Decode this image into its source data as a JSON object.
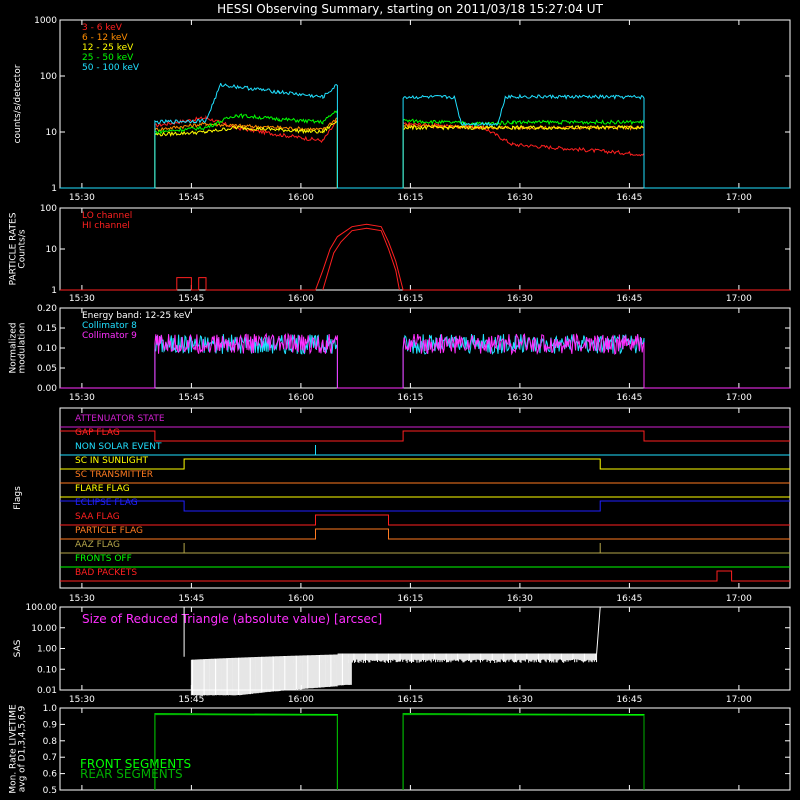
{
  "title": "HESSI Observing Summary, starting on 2011/03/18 15:27:04 UT",
  "time_ticks": [
    "15:30",
    "15:45",
    "16:00",
    "16:15",
    "16:30",
    "16:45",
    "17:00"
  ],
  "colors": {
    "white": "#ffffff",
    "red": "#ff2020",
    "orange": "#ff8c00",
    "yellow": "#ffff00",
    "green": "#00ff00",
    "cyan": "#20e0ff",
    "magenta": "#ff30ff",
    "blue": "#2020ff",
    "olive": "#b5a64a",
    "flag_magenta": "#d020d0",
    "flag_orange": "#ff7a20",
    "flag_darkgreen": "#00b000"
  },
  "chart_data": [
    {
      "id": "xray",
      "type": "line",
      "ylabel": "counts/s/detector",
      "yscale": "log",
      "ylim": [
        1,
        1000
      ],
      "yticks": [
        "1",
        "10",
        "100",
        "1000"
      ],
      "x_unit": "minutes since 15:27:04 UT",
      "xlim": [
        0,
        100
      ],
      "legend": [
        "3 - 6 keV",
        "6 - 12 keV",
        "12 - 25 keV",
        "25 - 50 keV",
        "50 - 100 keV"
      ],
      "legend_colors": [
        "red",
        "orange",
        "yellow",
        "green",
        "cyan"
      ],
      "intervals": [
        [
          13,
          38
        ],
        [
          47,
          80
        ]
      ],
      "series": [
        {
          "name": "3 - 6 keV",
          "color": "red",
          "points": [
            [
              13,
              13
            ],
            [
              20,
              18
            ],
            [
              24,
              12
            ],
            [
              30,
              9
            ],
            [
              36,
              7
            ],
            [
              38,
              16
            ],
            [
              47,
              14
            ],
            [
              58,
              12
            ],
            [
              62,
              6
            ],
            [
              80,
              4
            ]
          ]
        },
        {
          "name": "6 - 12 keV",
          "color": "orange",
          "points": [
            [
              13,
              11
            ],
            [
              20,
              14
            ],
            [
              24,
              13
            ],
            [
              30,
              12
            ],
            [
              36,
              11
            ],
            [
              38,
              18
            ],
            [
              47,
              13
            ],
            [
              58,
              12
            ],
            [
              62,
              12
            ],
            [
              80,
              12
            ]
          ]
        },
        {
          "name": "12 - 25 keV",
          "color": "yellow",
          "points": [
            [
              13,
              9
            ],
            [
              20,
              10
            ],
            [
              24,
              12
            ],
            [
              30,
              11
            ],
            [
              36,
              10
            ],
            [
              38,
              16
            ],
            [
              47,
              12
            ],
            [
              58,
              12
            ],
            [
              62,
              12
            ],
            [
              80,
              12
            ]
          ]
        },
        {
          "name": "25 - 50 keV",
          "color": "green",
          "points": [
            [
              13,
              10
            ],
            [
              20,
              12
            ],
            [
              24,
              20
            ],
            [
              30,
              17
            ],
            [
              36,
              15
            ],
            [
              38,
              25
            ],
            [
              47,
              16
            ],
            [
              58,
              14
            ],
            [
              62,
              15
            ],
            [
              80,
              15
            ]
          ]
        },
        {
          "name": "50 - 100 keV",
          "color": "cyan",
          "points": [
            [
              13,
              15
            ],
            [
              20,
              16
            ],
            [
              22,
              70
            ],
            [
              30,
              52
            ],
            [
              36,
              42
            ],
            [
              38,
              70
            ],
            [
              47,
              42
            ],
            [
              54,
              42
            ],
            [
              55,
              14
            ],
            [
              60,
              14
            ],
            [
              61,
              43
            ],
            [
              80,
              42
            ]
          ]
        }
      ]
    },
    {
      "id": "particle",
      "type": "line",
      "ylabel": "PARTICLE RATES Counts/s",
      "yscale": "log",
      "ylim": [
        1,
        100
      ],
      "yticks": [
        "1",
        "10",
        "100"
      ],
      "legend": [
        "LO channel",
        "HI channel"
      ],
      "legend_colors": [
        "red",
        "red"
      ],
      "series": [
        {
          "name": "LO channel",
          "color": "red",
          "points": [
            [
              0,
              1
            ],
            [
              16,
              1
            ],
            [
              16,
              2
            ],
            [
              18,
              2
            ],
            [
              18,
              1
            ],
            [
              19,
              1
            ],
            [
              19,
              2
            ],
            [
              20,
              2
            ],
            [
              20,
              1
            ],
            [
              35,
              1
            ],
            [
              36,
              3
            ],
            [
              37,
              10
            ],
            [
              38,
              20
            ],
            [
              40,
              35
            ],
            [
              42,
              40
            ],
            [
              44,
              35
            ],
            [
              45,
              15
            ],
            [
              46,
              5
            ],
            [
              47,
              1
            ],
            [
              100,
              1
            ]
          ]
        },
        {
          "name": "HI channel",
          "color": "red",
          "points": [
            [
              36,
              1
            ],
            [
              36.5,
              2
            ],
            [
              37.5,
              8
            ],
            [
              38.5,
              15
            ],
            [
              40,
              28
            ],
            [
              42,
              32
            ],
            [
              44,
              28
            ],
            [
              45,
              10
            ],
            [
              46,
              3
            ],
            [
              46.5,
              1
            ]
          ]
        }
      ]
    },
    {
      "id": "modulation",
      "type": "line",
      "ylabel": "Normalized modulation",
      "ylim": [
        0,
        0.2
      ],
      "yticks": [
        "0.00",
        "0.05",
        "0.10",
        "0.15",
        "0.20"
      ],
      "legend": [
        "Energy band:  12-25 keV",
        "Collimator 8",
        "Collimator 9"
      ],
      "legend_colors": [
        "white",
        "cyan",
        "magenta"
      ],
      "intervals": [
        [
          13,
          38
        ],
        [
          47,
          80
        ]
      ],
      "series": [
        {
          "name": "Collimator 8",
          "color": "cyan",
          "mean": 0.11
        },
        {
          "name": "Collimator 9",
          "color": "magenta",
          "mean": 0.11
        }
      ]
    },
    {
      "id": "flags",
      "type": "table",
      "ylabel": "Flags",
      "flags": [
        {
          "label": "ATTENUATOR STATE",
          "color": "flag_magenta",
          "states": [
            [
              0,
              100,
              0
            ]
          ]
        },
        {
          "label": "GAP FLAG",
          "color": "red",
          "states": [
            [
              0,
              13,
              1
            ],
            [
              13,
              47,
              0
            ],
            [
              47,
              80,
              1
            ],
            [
              80,
              100,
              0
            ]
          ]
        },
        {
          "label": "NON SOLAR EVENT",
          "color": "cyan",
          "states": [
            [
              0,
              100,
              0
            ]
          ],
          "spikes": [
            35
          ]
        },
        {
          "label": "SC IN SUNLIGHT",
          "color": "yellow",
          "states": [
            [
              0,
              17,
              0
            ],
            [
              17,
              74,
              1
            ],
            [
              74,
              100,
              0
            ]
          ]
        },
        {
          "label": "SC TRANSMITTER",
          "color": "flag_orange",
          "states": [
            [
              0,
              100,
              0
            ]
          ]
        },
        {
          "label": "FLARE FLAG",
          "color": "yellow",
          "states": [
            [
              0,
              100,
              0
            ]
          ]
        },
        {
          "label": "ECLIPSE FLAG",
          "color": "blue",
          "states": [
            [
              0,
              17,
              1
            ],
            [
              17,
              74,
              0
            ],
            [
              74,
              100,
              1
            ]
          ]
        },
        {
          "label": "SAA FLAG",
          "color": "red",
          "states": [
            [
              0,
              35,
              0
            ],
            [
              35,
              45,
              1
            ],
            [
              45,
              100,
              0
            ]
          ]
        },
        {
          "label": "PARTICLE FLAG",
          "color": "flag_orange",
          "states": [
            [
              0,
              35,
              0
            ],
            [
              35,
              45,
              1
            ],
            [
              45,
              100,
              0
            ]
          ]
        },
        {
          "label": "AAZ FLAG",
          "color": "olive",
          "states": [
            [
              0,
              100,
              0
            ]
          ],
          "spikes": [
            17,
            74
          ]
        },
        {
          "label": "FRONTS OFF",
          "color": "green",
          "states": [
            [
              0,
              100,
              0
            ]
          ]
        },
        {
          "label": "BAD PACKETS",
          "color": "red",
          "states": [
            [
              0,
              90,
              0
            ],
            [
              90,
              92,
              1
            ],
            [
              92,
              100,
              0
            ]
          ]
        }
      ]
    },
    {
      "id": "sas",
      "type": "line",
      "ylabel": "SAS",
      "yscale": "log",
      "ylim": [
        0.01,
        100
      ],
      "yticks": [
        "0.01",
        "0.10",
        "1.00",
        "10.00",
        "100.00"
      ],
      "legend": [
        "Size of Reduced Triangle (absolute value) [arcsec]"
      ],
      "legend_colors": [
        "magenta"
      ],
      "series": [
        {
          "name": "Size of Reduced Triangle (absolute value) [arcsec]",
          "color": "white",
          "points": [
            [
              17,
              20
            ],
            [
              18,
              0.4
            ],
            [
              30,
              0.3
            ],
            [
              38,
              0.5
            ],
            [
              45,
              0.6
            ],
            [
              60,
              0.6
            ],
            [
              73,
              0.6
            ],
            [
              74,
              50
            ]
          ]
        }
      ]
    },
    {
      "id": "livetime",
      "type": "line",
      "ylabel": "Mon. Rate LIVETIME avg of D1,3,4,5,6,9",
      "ylim": [
        0.5,
        1.0
      ],
      "yticks": [
        "0.5",
        "0.6",
        "0.7",
        "0.8",
        "0.9",
        "1.0"
      ],
      "legend": [
        "FRONT SEGMENTS",
        "REAR SEGMENTS"
      ],
      "legend_colors": [
        "green",
        "flag_darkgreen"
      ],
      "intervals": [
        [
          13,
          38
        ],
        [
          47,
          80
        ]
      ],
      "series": [
        {
          "name": "FRONT SEGMENTS",
          "color": "green",
          "level": 0.965
        },
        {
          "name": "REAR SEGMENTS",
          "color": "flag_darkgreen",
          "level": 0.96
        }
      ]
    }
  ]
}
